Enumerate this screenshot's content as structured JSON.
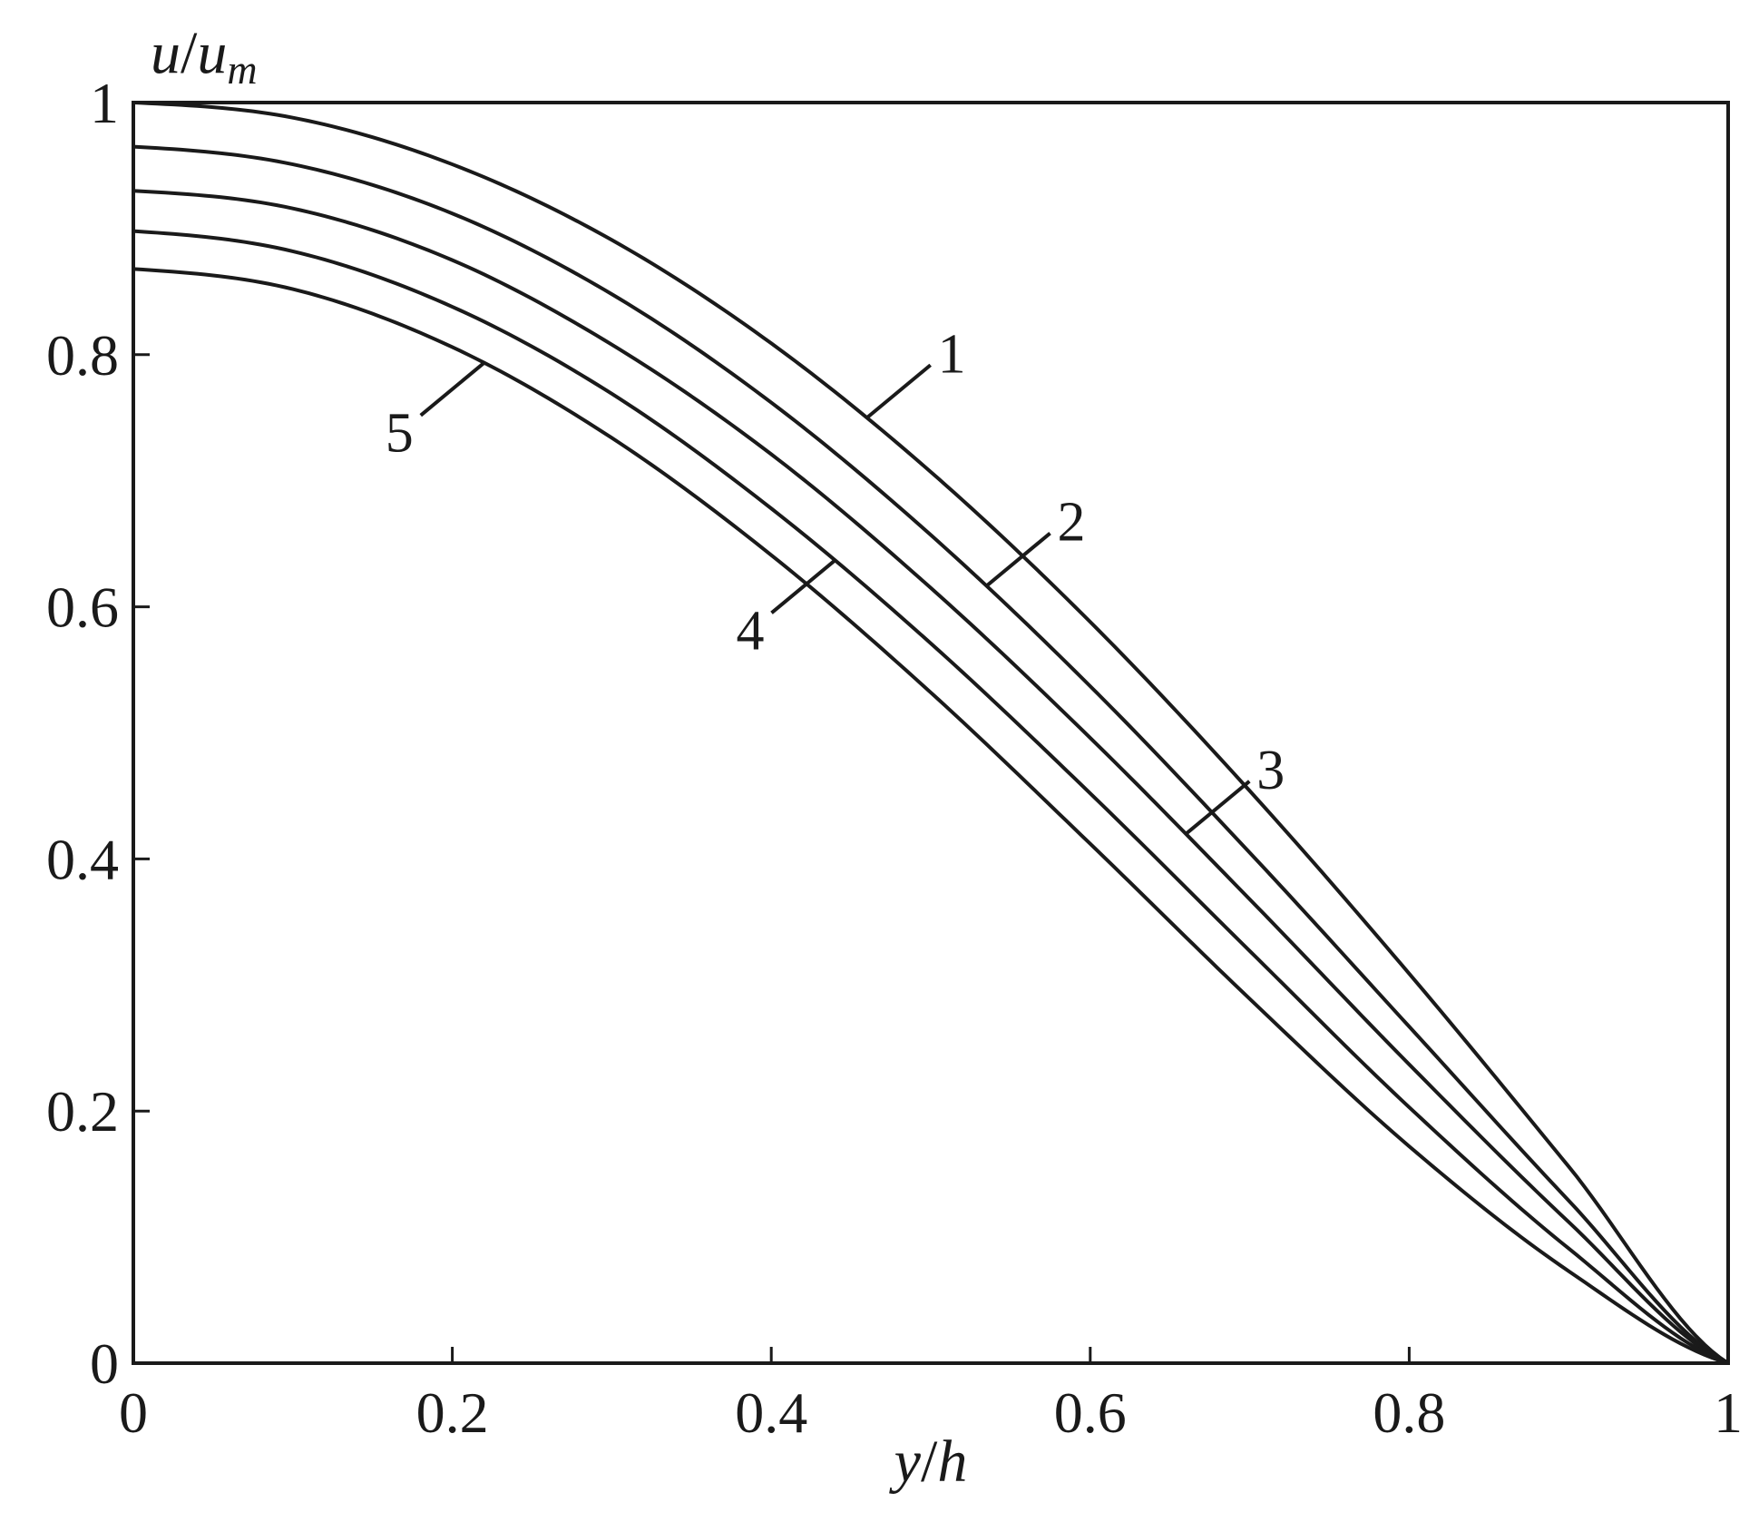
{
  "chart_data": {
    "type": "line",
    "xlabel_main": "y",
    "xlabel_sep": "/",
    "xlabel_denom": "h",
    "ylabel_main": "u",
    "ylabel_sep": "/",
    "ylabel_denom": "u",
    "ylabel_sub": "m",
    "xlim": [
      0,
      1
    ],
    "ylim": [
      0,
      1
    ],
    "xticks": [
      0,
      0.2,
      0.4,
      0.6,
      0.8,
      1
    ],
    "xtick_labels": [
      "0",
      "0.2",
      "0.4",
      "0.6",
      "0.8",
      "1"
    ],
    "yticks": [
      0,
      0.2,
      0.4,
      0.6,
      0.8,
      1
    ],
    "ytick_labels": [
      "0",
      "0.2",
      "0.4",
      "0.6",
      "0.8",
      "1"
    ],
    "grid": false,
    "legend": "none",
    "series": [
      {
        "label": "1",
        "x": [
          0,
          0.1,
          0.2,
          0.3,
          0.4,
          0.5,
          0.6,
          0.7,
          0.8,
          0.9,
          1.0
        ],
        "y": [
          1.0,
          0.988,
          0.951,
          0.891,
          0.809,
          0.707,
          0.588,
          0.454,
          0.309,
          0.156,
          0.0
        ]
      },
      {
        "label": "2",
        "x": [
          0,
          0.1,
          0.2,
          0.3,
          0.4,
          0.5,
          0.6,
          0.7,
          0.8,
          0.9,
          1.0
        ],
        "y": [
          0.965,
          0.951,
          0.912,
          0.848,
          0.762,
          0.657,
          0.537,
          0.405,
          0.267,
          0.129,
          0.0
        ]
      },
      {
        "label": "3",
        "x": [
          0,
          0.1,
          0.2,
          0.3,
          0.4,
          0.5,
          0.6,
          0.7,
          0.8,
          0.9,
          1.0
        ],
        "y": [
          0.93,
          0.916,
          0.875,
          0.808,
          0.721,
          0.615,
          0.496,
          0.368,
          0.237,
          0.112,
          0.0
        ]
      },
      {
        "label": "4",
        "x": [
          0,
          0.1,
          0.2,
          0.3,
          0.4,
          0.5,
          0.6,
          0.7,
          0.8,
          0.9,
          1.0
        ],
        "y": [
          0.898,
          0.882,
          0.838,
          0.769,
          0.678,
          0.571,
          0.452,
          0.327,
          0.203,
          0.091,
          0.0
        ]
      },
      {
        "label": "5",
        "x": [
          0,
          0.1,
          0.2,
          0.3,
          0.4,
          0.5,
          0.6,
          0.7,
          0.8,
          0.9,
          1.0
        ],
        "y": [
          0.868,
          0.852,
          0.806,
          0.734,
          0.641,
          0.532,
          0.412,
          0.289,
          0.172,
          0.073,
          0.0
        ]
      }
    ],
    "annotations": [
      {
        "text": "1",
        "series": 0,
        "at_x": 0.46
      },
      {
        "text": "2",
        "series": 1,
        "at_x": 0.535
      },
      {
        "text": "3",
        "series": 2,
        "at_x": 0.66
      },
      {
        "text": "4",
        "series": 3,
        "at_x": 0.44
      },
      {
        "text": "5",
        "series": 4,
        "at_x": 0.22
      }
    ],
    "line_color": "#1a1a1a"
  }
}
